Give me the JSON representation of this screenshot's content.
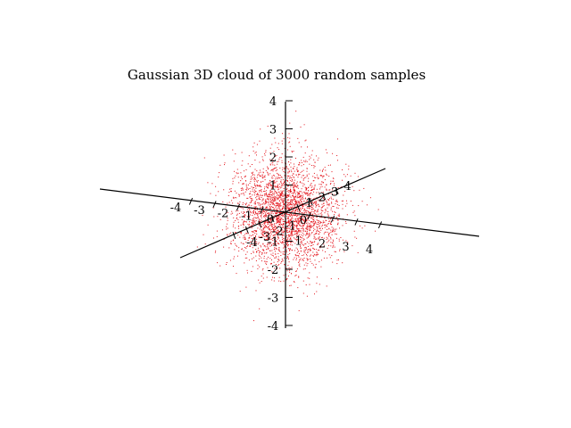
{
  "chart_data": {
    "type": "scatter",
    "title": "Gaussian 3D cloud of 3000 random samples",
    "xlabel": "",
    "ylabel": "",
    "zlabel": "",
    "distribution": "gaussian",
    "dimensions": 3,
    "sample_count": 3000,
    "mean": [
      0,
      0,
      0
    ],
    "std": [
      1,
      1,
      1
    ],
    "xlim": [
      -4,
      4
    ],
    "ylim": [
      -4,
      4
    ],
    "zlim": [
      -4,
      4
    ],
    "point_color": "#e4141c",
    "grid": false,
    "legend": "none",
    "axes": {
      "horizontal": {
        "neg_labels": [
          "-4",
          "-3",
          "-2",
          "-1",
          "0"
        ],
        "pos_labels": [
          "1",
          "2",
          "3",
          "4"
        ]
      },
      "depth": {
        "neg_labels": [
          "-4",
          "-3",
          "-2",
          "-1",
          "0"
        ],
        "pos_labels": [
          "1",
          "2",
          "3",
          "4"
        ]
      },
      "vertical": {
        "neg_labels": [
          "-1",
          "-2",
          "-3",
          "-4"
        ],
        "pos_labels": [
          "1",
          "2",
          "3",
          "4"
        ]
      }
    }
  }
}
